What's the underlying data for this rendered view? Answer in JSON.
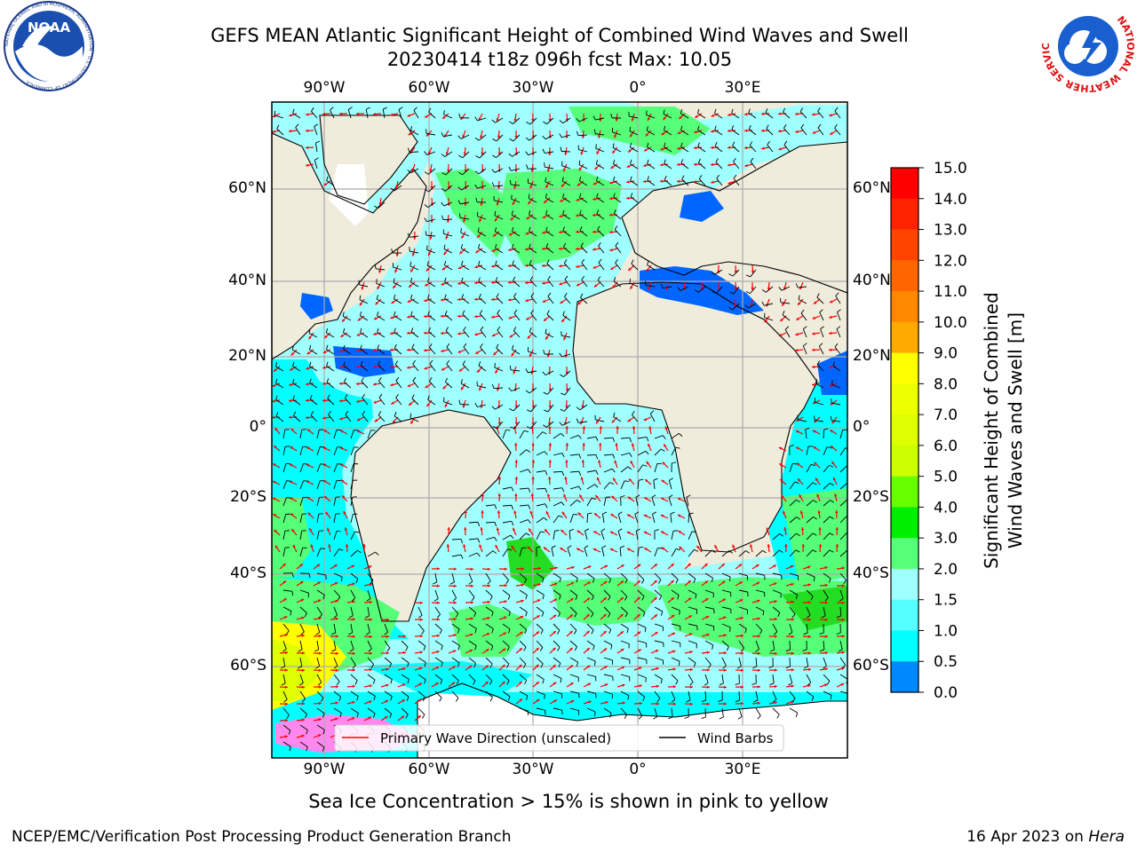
{
  "header": {
    "title_line1": "GEFS MEAN Atlantic Significant Height of Combined Wind Waves and Swell",
    "title_line2": "20230414 t18z 096h fcst   Max: 10.05"
  },
  "logos": {
    "left": "NOAA",
    "left_ring": "NATIONAL OCEANIC AND ATMOSPHERIC ADMINISTRATION · U.S. DEPARTMENT OF COMMERCE",
    "right_ring": "NATIONAL WEATHER SERVICE"
  },
  "map": {
    "lon_labels_top": [
      "90°W",
      "60°W",
      "30°W",
      "0°",
      "30°E"
    ],
    "lon_labels_bottom": [
      "90°W",
      "60°W",
      "30°W",
      "0°",
      "30°E"
    ],
    "lat_labels_left": [
      "60°N",
      "40°N",
      "20°N",
      "0°",
      "20°S",
      "40°S",
      "60°S"
    ],
    "lat_labels_right": [
      "60°N",
      "40°N",
      "20°N",
      "0°",
      "20°S",
      "40°S",
      "60°S"
    ],
    "colors": {
      "land": "#efecdc",
      "ocean_low": "#00ffff",
      "ocean_mid": "#a0ffff",
      "swell_green": "#55ff77",
      "deep_green": "#22dd22",
      "yellow": "#ffff00",
      "blue": "#0066ff",
      "grid": "#aaaaaa",
      "wave_arrow": "#ff0000",
      "barb": "#000000"
    }
  },
  "legend": {
    "wave_direction": "Primary Wave Direction (unscaled)",
    "wind_barbs": "Wind Barbs"
  },
  "colorbar": {
    "label_line1": "Significant Height of Combined",
    "label_line2": "Wind Waves and Swell [m]",
    "ticks": [
      "15.0",
      "14.0",
      "13.0",
      "12.0",
      "11.0",
      "10.0",
      "9.0",
      "8.0",
      "7.0",
      "6.0",
      "5.0",
      "4.0",
      "3.0",
      "2.0",
      "1.5",
      "1.0",
      "0.5",
      "0.0"
    ],
    "colors": [
      "#ff0000",
      "#ff2200",
      "#ff4400",
      "#ff6600",
      "#ff8800",
      "#ffaa00",
      "#ffff00",
      "#eeff00",
      "#ddff00",
      "#ccff00",
      "#66ff00",
      "#00ee00",
      "#55ff77",
      "#a0ffff",
      "#55ffff",
      "#00ffff",
      "#0088ff",
      "#0000ff"
    ]
  },
  "footer": {
    "sea_ice_note": "Sea Ice Concentration > 15% is shown in pink to yellow",
    "producer": "NCEP/EMC/Verification Post Processing Product Generation Branch",
    "date": "16 Apr 2023 on ",
    "host": "Hera"
  }
}
